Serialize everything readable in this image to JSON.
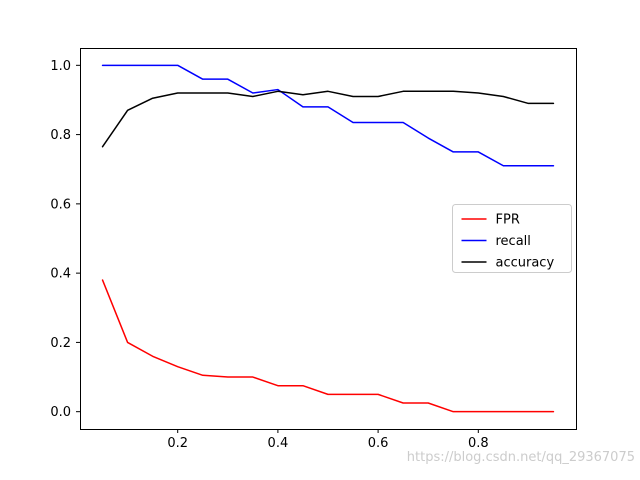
{
  "figure": {
    "background": "#ffffff",
    "watermark": "https://blog.csdn.net/qq_29367075"
  },
  "chart_data": {
    "type": "line",
    "title": "",
    "xlabel": "",
    "ylabel": "",
    "grid": false,
    "xlim": [
      0.005,
      0.995
    ],
    "ylim": [
      -0.05,
      1.05
    ],
    "xticks": [
      0.2,
      0.4,
      0.6,
      0.8
    ],
    "yticks": [
      0.0,
      0.2,
      0.4,
      0.6,
      0.8,
      1.0
    ],
    "x": [
      0.05,
      0.1,
      0.15,
      0.2,
      0.25,
      0.3,
      0.35,
      0.4,
      0.45,
      0.5,
      0.55,
      0.6,
      0.65,
      0.7,
      0.75,
      0.8,
      0.85,
      0.9,
      0.95
    ],
    "series": [
      {
        "name": "FPR",
        "color": "#ff0000",
        "values": [
          0.38,
          0.2,
          0.16,
          0.13,
          0.105,
          0.1,
          0.1,
          0.075,
          0.075,
          0.05,
          0.05,
          0.05,
          0.025,
          0.025,
          0.0,
          0.0,
          0.0,
          0.0,
          0.0
        ]
      },
      {
        "name": "recall",
        "color": "#0000ff",
        "values": [
          1.0,
          1.0,
          1.0,
          1.0,
          0.96,
          0.96,
          0.92,
          0.93,
          0.88,
          0.88,
          0.835,
          0.835,
          0.835,
          0.79,
          0.75,
          0.75,
          0.71,
          0.71,
          0.71
        ]
      },
      {
        "name": "accuracy",
        "color": "#000000",
        "values": [
          0.765,
          0.87,
          0.905,
          0.92,
          0.92,
          0.92,
          0.91,
          0.925,
          0.915,
          0.925,
          0.91,
          0.91,
          0.925,
          0.925,
          0.925,
          0.92,
          0.91,
          0.89,
          0.89
        ]
      }
    ],
    "legend": {
      "position": "center-right",
      "entries": [
        "FPR",
        "recall",
        "accuracy"
      ],
      "border_color": "#cccccc",
      "background": "#ffffff"
    }
  },
  "style": {
    "axes_color": "#000000",
    "tick_label_size": 13,
    "line_width": 1.5
  }
}
